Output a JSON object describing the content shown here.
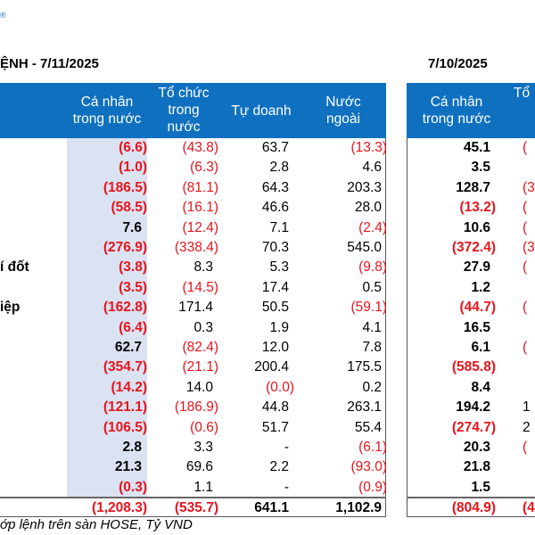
{
  "logo_mark": "®",
  "left_table": {
    "title": "ỆNH - 7/11/2025",
    "headers": [
      "Cá nhân\ntrong nước",
      "Tổ chức\ntrong\nnước",
      "Tự doanh",
      "Nước\nngoài"
    ],
    "row_labels": [
      "",
      "",
      "",
      "",
      "",
      "",
      "í đốt",
      "",
      "iệp",
      "",
      "",
      "",
      "",
      "",
      "",
      "",
      "",
      ""
    ],
    "rows": [
      [
        "(6.6)",
        "(43.8)",
        "63.7",
        "(13.3)"
      ],
      [
        "(1.0)",
        "(6.3)",
        "2.8",
        "4.6"
      ],
      [
        "(186.5)",
        "(81.1)",
        "64.3",
        "203.3"
      ],
      [
        "(58.5)",
        "(16.1)",
        "46.6",
        "28.0"
      ],
      [
        "7.6",
        "(12.4)",
        "7.1",
        "(2.4)"
      ],
      [
        "(276.9)",
        "(338.4)",
        "70.3",
        "545.0"
      ],
      [
        "(3.8)",
        "8.3",
        "5.3",
        "(9.8)"
      ],
      [
        "(3.5)",
        "(14.5)",
        "17.4",
        "0.5"
      ],
      [
        "(162.8)",
        "171.4",
        "50.5",
        "(59.1)"
      ],
      [
        "(6.4)",
        "0.3",
        "1.9",
        "4.1"
      ],
      [
        "62.7",
        "(82.4)",
        "12.0",
        "7.8"
      ],
      [
        "(354.7)",
        "(21.1)",
        "200.4",
        "175.5"
      ],
      [
        "(14.2)",
        "14.0",
        "(0.0)",
        "0.2"
      ],
      [
        "(121.1)",
        "(186.9)",
        "44.8",
        "263.1"
      ],
      [
        "(106.5)",
        "(0.6)",
        "51.7",
        "55.4"
      ],
      [
        "2.8",
        "3.3",
        "-",
        "(6.1)"
      ],
      [
        "21.3",
        "69.6",
        "2.2",
        "(93.0)"
      ],
      [
        "(0.3)",
        "1.1",
        "-",
        "(0.9)"
      ]
    ],
    "total": [
      "(1,208.3)",
      "(535.7)",
      "641.1",
      "1,102.9"
    ]
  },
  "right_table": {
    "title": "7/10/2025",
    "headers": [
      "Cá nhân\ntrong nước",
      "Tổ"
    ],
    "rows": [
      [
        "45.1",
        "("
      ],
      [
        "3.5",
        ""
      ],
      [
        "128.7",
        "(3"
      ],
      [
        "(13.2)",
        "("
      ],
      [
        "10.6",
        "("
      ],
      [
        "(372.4)",
        "(3"
      ],
      [
        "27.9",
        "("
      ],
      [
        "1.2",
        ""
      ],
      [
        "(44.7)",
        "("
      ],
      [
        "16.5",
        ""
      ],
      [
        "6.1",
        "("
      ],
      [
        "(585.8)",
        ""
      ],
      [
        "8.4",
        ""
      ],
      [
        "194.2",
        "1"
      ],
      [
        "(274.7)",
        "2"
      ],
      [
        "20.3",
        "("
      ],
      [
        "21.8",
        ""
      ],
      [
        "1.5",
        ""
      ]
    ],
    "total": [
      "(804.9)",
      "(4"
    ]
  },
  "footnote": "ớp lệnh trên sàn HOSE, Tỷ VND",
  "colors": {
    "header_bg": "#0f70c0",
    "negative": "#e8141c",
    "highlight_col": "#dbe2f2"
  }
}
